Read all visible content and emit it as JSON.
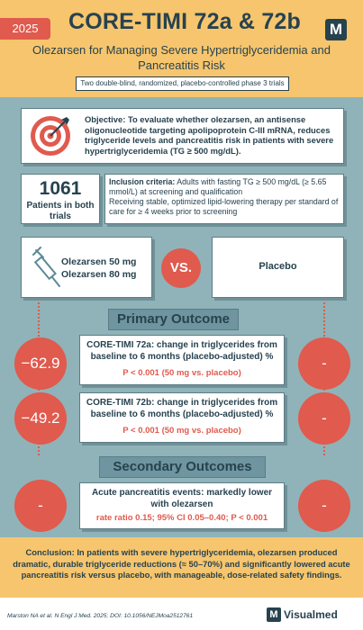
{
  "header": {
    "year": "2025",
    "title": "CORE-TIMI 72a & 72b",
    "logo_letter": "M",
    "subtitle": "Olezarsen for Managing Severe Hypertriglyceridemia and Pancreatitis Risk",
    "design_badge": "Two double-blind, randomized, placebo-controlled phase 3 trials"
  },
  "objective": {
    "label": "Objective:",
    "text": "To evaluate whether olezarsen, an antisense oligonucleotide targeting apolipoprotein C-III mRNA, reduces triglyceride levels and pancreatitis risk in patients with severe hypertriglyceridemia (TG ≥ 500 mg/dL).",
    "icon": "target-icon"
  },
  "patients": {
    "count": "1061",
    "label": "Patients in both trials"
  },
  "inclusion": {
    "label": "Inclusion criteria:",
    "text": "Adults with fasting TG ≥ 500 mg/dL (≥ 5.65 mmol/L) at screening and qualification",
    "text2": "Receiving stable, optimized lipid-lowering therapy per standard of care for ≥ 4 weeks prior to screening"
  },
  "arms": {
    "treatment_line1": "Olezarsen 50 mg",
    "treatment_line2": "Olezarsen 80 mg",
    "treatment_icon": "syringe-icon",
    "vs": "VS.",
    "control": "Placebo"
  },
  "primary": {
    "heading": "Primary Outcome",
    "items": [
      {
        "title": "CORE-TIMI 72a: change in triglycerides from baseline to 6 months (placebo-adjusted) %",
        "stat": "P < 0.001 (50 mg vs. placebo)",
        "left_value": "−62.9",
        "right_value": "-"
      },
      {
        "title": "CORE-TIMI 72b: change in triglycerides from baseline to 6 months (placebo-adjusted) %",
        "stat": "P < 0.001 (50 mg vs. placebo)",
        "left_value": "−49.2",
        "right_value": "-"
      }
    ]
  },
  "secondary": {
    "heading": "Secondary Outcomes",
    "items": [
      {
        "title": "Acute pancreatitis events: markedly lower with olezarsen",
        "stat": "rate ratio 0.15; 95% CI 0.05–0.40; P < 0.001",
        "left_value": "-",
        "right_value": "-"
      }
    ]
  },
  "conclusion": {
    "label": "Conclusion:",
    "text": "In patients with severe hypertriglyceridemia, olezarsen produced dramatic, durable triglyceride reductions (≈ 50–70%) and significantly lowered acute pancreatitis risk versus placebo, with manageable, dose-related safety findings."
  },
  "footer": {
    "citation": "Marston NA et al. N Engl J Med. 2025; DOI: 10.1056/NEJMoa2512761",
    "brand_letter": "M",
    "brand": "Visualmed"
  },
  "colors": {
    "accent_red": "#e05a4e",
    "header_yellow": "#f6c56d",
    "background_teal": "#8fb3b8",
    "navy": "#27424f"
  }
}
